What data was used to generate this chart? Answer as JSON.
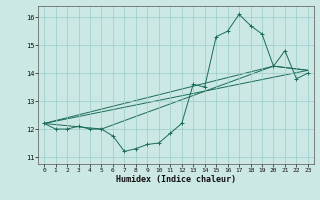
{
  "title": "",
  "xlabel": "Humidex (Indice chaleur)",
  "bg_color": "#cce8e4",
  "grid_color": "#99cccc",
  "line_color": "#1a6b5a",
  "xlim": [
    -0.5,
    23.5
  ],
  "ylim": [
    10.75,
    16.4
  ],
  "xticks": [
    0,
    1,
    2,
    3,
    4,
    5,
    6,
    7,
    8,
    9,
    10,
    11,
    12,
    13,
    14,
    15,
    16,
    17,
    18,
    19,
    20,
    21,
    22,
    23
  ],
  "yticks": [
    11,
    12,
    13,
    14,
    15,
    16
  ],
  "line1_x": [
    0,
    1,
    2,
    3,
    4,
    5,
    6,
    7,
    8,
    9,
    10,
    11,
    12,
    13,
    14,
    15,
    16,
    17,
    18,
    19,
    20,
    21,
    22,
    23
  ],
  "line1_y": [
    12.2,
    12.0,
    12.0,
    12.1,
    12.0,
    12.0,
    11.75,
    11.2,
    11.3,
    11.45,
    11.5,
    11.85,
    12.2,
    13.6,
    13.5,
    15.3,
    15.5,
    16.1,
    15.7,
    15.4,
    14.25,
    14.8,
    13.8,
    14.0
  ],
  "line2_x": [
    0,
    23
  ],
  "line2_y": [
    12.2,
    14.1
  ],
  "line3_x": [
    0,
    20,
    23
  ],
  "line3_y": [
    12.2,
    14.25,
    14.1
  ],
  "line4_x": [
    0,
    5,
    20,
    23
  ],
  "line4_y": [
    12.2,
    12.0,
    14.25,
    14.1
  ]
}
